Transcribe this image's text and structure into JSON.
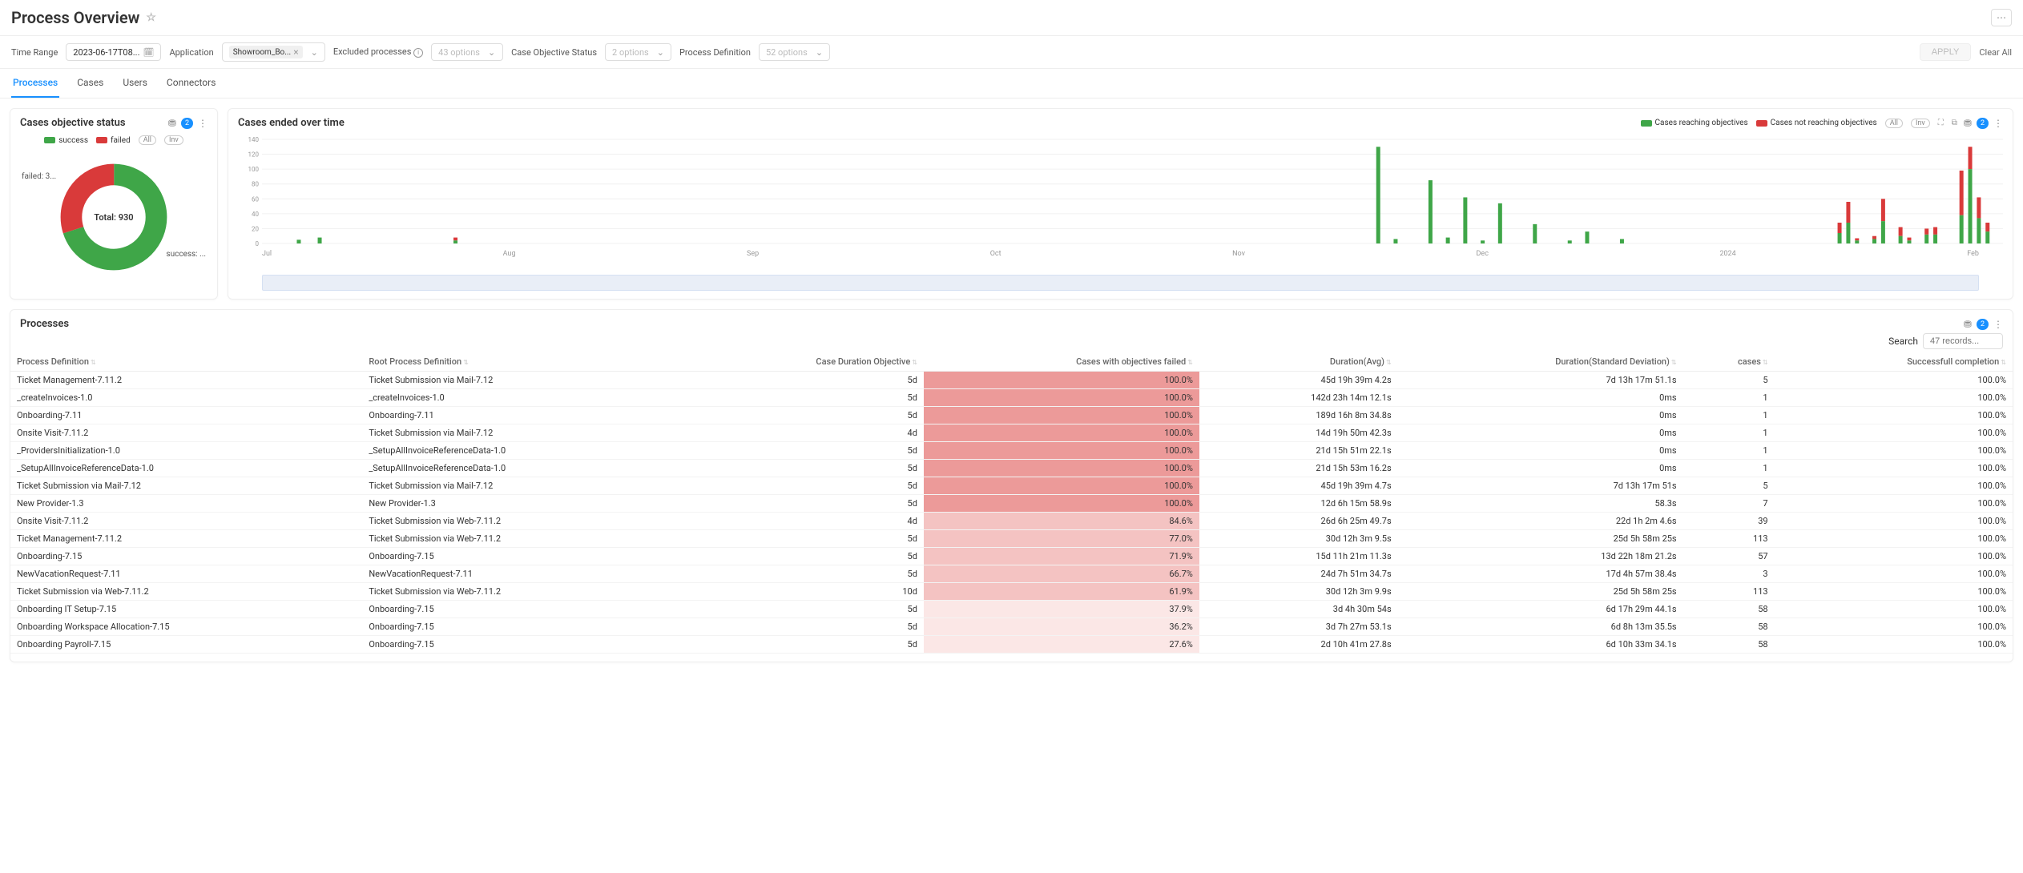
{
  "page": {
    "title": "Process Overview"
  },
  "filters": {
    "time_range_label": "Time Range",
    "time_range_value": "2023-06-17T08...",
    "application_label": "Application",
    "application_chip": "Showroom_Bo...",
    "excluded_label": "Excluded processes",
    "excluded_placeholder": "43 options",
    "case_obj_label": "Case Objective Status",
    "case_obj_placeholder": "2 options",
    "proc_def_label": "Process Definition",
    "proc_def_placeholder": "52 options",
    "apply": "APPLY",
    "clear_all": "Clear All"
  },
  "tabs": {
    "processes": "Processes",
    "cases": "Cases",
    "users": "Users",
    "connectors": "Connectors"
  },
  "pie_card": {
    "title": "Cases objective status",
    "badge": "2",
    "legend_success": "success",
    "legend_failed": "failed",
    "toggle_all": "All",
    "toggle_inv": "Inv",
    "total_label": "Total: 930",
    "failed_label": "failed: 3...",
    "success_label": "success: ...",
    "colors": {
      "success": "#3fa648",
      "failed": "#d93a3a"
    },
    "failed_pct": 30
  },
  "bar_card": {
    "title": "Cases ended over time",
    "badge": "2",
    "legend_reach": "Cases reaching objectives",
    "legend_notreach": "Cases not reaching objectives",
    "toggle_all": "All",
    "toggle_inv": "Inv",
    "y_ticks": [
      0,
      20,
      40,
      60,
      80,
      100,
      120,
      140
    ],
    "x_labels": [
      "Jul",
      "Aug",
      "Sep",
      "Oct",
      "Nov",
      "Dec",
      "2024",
      "Feb"
    ],
    "colors": {
      "reach": "#3fa648",
      "notreach": "#d93a3a"
    },
    "bars": [
      {
        "x": 2,
        "reach": 5,
        "notreach": 0
      },
      {
        "x": 3.2,
        "reach": 8,
        "notreach": 0
      },
      {
        "x": 11,
        "reach": 4,
        "notreach": 4
      },
      {
        "x": 64,
        "reach": 130,
        "notreach": 0
      },
      {
        "x": 65,
        "reach": 6,
        "notreach": 0
      },
      {
        "x": 67,
        "reach": 85,
        "notreach": 0
      },
      {
        "x": 68,
        "reach": 8,
        "notreach": 0
      },
      {
        "x": 69,
        "reach": 62,
        "notreach": 0
      },
      {
        "x": 70,
        "reach": 4,
        "notreach": 0
      },
      {
        "x": 71,
        "reach": 54,
        "notreach": 0
      },
      {
        "x": 73,
        "reach": 26,
        "notreach": 0
      },
      {
        "x": 75,
        "reach": 4,
        "notreach": 0
      },
      {
        "x": 76,
        "reach": 16,
        "notreach": 0
      },
      {
        "x": 78,
        "reach": 6,
        "notreach": 0
      },
      {
        "x": 90.5,
        "reach": 14,
        "notreach": 14
      },
      {
        "x": 91,
        "reach": 28,
        "notreach": 28
      },
      {
        "x": 91.5,
        "reach": 4,
        "notreach": 3
      },
      {
        "x": 92.5,
        "reach": 6,
        "notreach": 4
      },
      {
        "x": 93,
        "reach": 30,
        "notreach": 30
      },
      {
        "x": 94,
        "reach": 10,
        "notreach": 12
      },
      {
        "x": 94.5,
        "reach": 4,
        "notreach": 4
      },
      {
        "x": 95.5,
        "reach": 12,
        "notreach": 8
      },
      {
        "x": 96,
        "reach": 12,
        "notreach": 10
      },
      {
        "x": 97.5,
        "reach": 38,
        "notreach": 60
      },
      {
        "x": 98,
        "reach": 100,
        "notreach": 30
      },
      {
        "x": 98.5,
        "reach": 34,
        "notreach": 28
      },
      {
        "x": 99,
        "reach": 16,
        "notreach": 12
      }
    ]
  },
  "processes": {
    "title": "Processes",
    "badge": "2",
    "search_label": "Search",
    "search_placeholder": "47 records...",
    "columns": {
      "proc_def": "Process Definition",
      "root_proc": "Root Process Definition",
      "case_dur": "Case Duration Objective",
      "cases_failed": "Cases with objectives failed",
      "dur_avg": "Duration(Avg)",
      "dur_std": "Duration(Standard Deviation)",
      "cases": "cases",
      "success_comp": "Successfull completion"
    },
    "fail_colors": {
      "max": "#ec9a99",
      "mid": "#f4c3c2",
      "low": "#fbe7e6"
    },
    "rows": [
      {
        "proc": "Ticket Management-7.11.2",
        "root": "Ticket Submission via Mail-7.12",
        "dur": "5d",
        "failed": 100.0,
        "avg": "45d 19h 39m 4.2s",
        "std": "7d 13h 17m 51.1s",
        "cases": 5,
        "comp": "100.0%"
      },
      {
        "proc": "_createInvoices-1.0",
        "root": "_createInvoices-1.0",
        "dur": "5d",
        "failed": 100.0,
        "avg": "142d 23h 14m 12.1s",
        "std": "0ms",
        "cases": 1,
        "comp": "100.0%"
      },
      {
        "proc": "Onboarding-7.11",
        "root": "Onboarding-7.11",
        "dur": "5d",
        "failed": 100.0,
        "avg": "189d 16h 8m 34.8s",
        "std": "0ms",
        "cases": 1,
        "comp": "100.0%"
      },
      {
        "proc": "Onsite Visit-7.11.2",
        "root": "Ticket Submission via Mail-7.12",
        "dur": "4d",
        "failed": 100.0,
        "avg": "14d 19h 50m 42.3s",
        "std": "0ms",
        "cases": 1,
        "comp": "100.0%"
      },
      {
        "proc": "_ProvidersInitialization-1.0",
        "root": "_SetupAllInvoiceReferenceData-1.0",
        "dur": "5d",
        "failed": 100.0,
        "avg": "21d 15h 51m 22.1s",
        "std": "0ms",
        "cases": 1,
        "comp": "100.0%"
      },
      {
        "proc": "_SetupAllInvoiceReferenceData-1.0",
        "root": "_SetupAllInvoiceReferenceData-1.0",
        "dur": "5d",
        "failed": 100.0,
        "avg": "21d 15h 53m 16.2s",
        "std": "0ms",
        "cases": 1,
        "comp": "100.0%"
      },
      {
        "proc": "Ticket Submission via Mail-7.12",
        "root": "Ticket Submission via Mail-7.12",
        "dur": "5d",
        "failed": 100.0,
        "avg": "45d 19h 39m 4.7s",
        "std": "7d 13h 17m 51s",
        "cases": 5,
        "comp": "100.0%"
      },
      {
        "proc": "New Provider-1.3",
        "root": "New Provider-1.3",
        "dur": "5d",
        "failed": 100.0,
        "avg": "12d 6h 15m 58.9s",
        "std": "58.3s",
        "cases": 7,
        "comp": "100.0%"
      },
      {
        "proc": "Onsite Visit-7.11.2",
        "root": "Ticket Submission via Web-7.11.2",
        "dur": "4d",
        "failed": 84.6,
        "avg": "26d 6h 25m 49.7s",
        "std": "22d 1h 2m 4.6s",
        "cases": 39,
        "comp": "100.0%"
      },
      {
        "proc": "Ticket Management-7.11.2",
        "root": "Ticket Submission via Web-7.11.2",
        "dur": "5d",
        "failed": 77.0,
        "avg": "30d 12h 3m 9.5s",
        "std": "25d 5h 58m 25s",
        "cases": 113,
        "comp": "100.0%"
      },
      {
        "proc": "Onboarding-7.15",
        "root": "Onboarding-7.15",
        "dur": "5d",
        "failed": 71.9,
        "avg": "15d 11h 21m 11.3s",
        "std": "13d 22h 18m 21.2s",
        "cases": 57,
        "comp": "100.0%"
      },
      {
        "proc": "NewVacationRequest-7.11",
        "root": "NewVacationRequest-7.11",
        "dur": "5d",
        "failed": 66.7,
        "avg": "24d 7h 51m 34.7s",
        "std": "17d 4h 57m 38.4s",
        "cases": 3,
        "comp": "100.0%"
      },
      {
        "proc": "Ticket Submission via Web-7.11.2",
        "root": "Ticket Submission via Web-7.11.2",
        "dur": "10d",
        "failed": 61.9,
        "avg": "30d 12h 3m 9.9s",
        "std": "25d 5h 58m 25s",
        "cases": 113,
        "comp": "100.0%"
      },
      {
        "proc": "Onboarding IT Setup-7.15",
        "root": "Onboarding-7.15",
        "dur": "5d",
        "failed": 37.9,
        "avg": "3d 4h 30m 54s",
        "std": "6d 17h 29m 44.1s",
        "cases": 58,
        "comp": "100.0%"
      },
      {
        "proc": "Onboarding Workspace Allocation-7.15",
        "root": "Onboarding-7.15",
        "dur": "5d",
        "failed": 36.2,
        "avg": "3d 7h 27m 53.1s",
        "std": "6d 8h 13m 35.5s",
        "cases": 58,
        "comp": "100.0%"
      },
      {
        "proc": "Onboarding Payroll-7.15",
        "root": "Onboarding-7.15",
        "dur": "5d",
        "failed": 27.6,
        "avg": "2d 10h 41m 27.8s",
        "std": "6d 10h 33m 34.1s",
        "cases": 58,
        "comp": "100.0%"
      }
    ]
  }
}
